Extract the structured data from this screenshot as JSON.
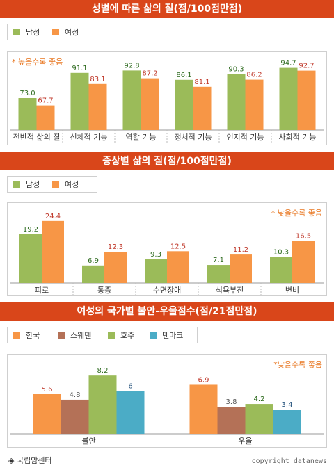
{
  "colors": {
    "green": "#9bbb59",
    "orange": "#f79646",
    "brown": "#b47157",
    "blue": "#4bacc6",
    "header": "#d9461a"
  },
  "footer": {
    "source": "◈ 국립암센터",
    "copyright": "copyright datanews"
  },
  "chart_data": [
    {
      "type": "bar",
      "title": "성별에 따른 삶의 질(점/100점만점)",
      "note": "* 높을수록 좋음",
      "categories": [
        "전반적 삶의 질",
        "신체적 기능",
        "역할 기능",
        "정서적 기능",
        "인지적 기능",
        "사회적 기능"
      ],
      "series": [
        {
          "name": "남성",
          "values": [
            73.0,
            91.1,
            92.8,
            86.1,
            90.3,
            94.7
          ],
          "labels": [
            "73.0",
            "91.1",
            "92.8",
            "86.1",
            "90.3",
            "94.7"
          ]
        },
        {
          "name": "여성",
          "values": [
            67.7,
            83.1,
            87.2,
            81.1,
            86.2,
            92.7
          ],
          "labels": [
            "67.7",
            "83.1",
            "87.2",
            "81.1",
            "86.2",
            "92.7"
          ]
        }
      ],
      "ylim": [
        50,
        100
      ],
      "grid": false,
      "legend": "top-left"
    },
    {
      "type": "bar",
      "title": "증상별 삶의 질(점/100점만점)",
      "note": "* 낮을수록 좋음",
      "categories": [
        "피로",
        "통증",
        "수면장애",
        "식욕부진",
        "변비"
      ],
      "series": [
        {
          "name": "남성",
          "values": [
            19.2,
            6.9,
            9.3,
            7.1,
            10.3
          ],
          "labels": [
            "19.2",
            "6.9",
            "9.3",
            "7.1",
            "10.3"
          ]
        },
        {
          "name": "여성",
          "values": [
            24.4,
            12.3,
            12.5,
            11.2,
            16.5
          ],
          "labels": [
            "24.4",
            "12.3",
            "12.5",
            "11.2",
            "16.5"
          ]
        }
      ],
      "ylim": [
        0,
        26
      ],
      "grid": false,
      "legend": "top-left"
    },
    {
      "type": "bar",
      "title": "여성의 국가별 불안-우울점수(점/21점만점)",
      "note": "*낮을수록 좋음",
      "categories": [
        "불안",
        "우울"
      ],
      "series": [
        {
          "name": "한국",
          "values": [
            5.6,
            6.9
          ],
          "labels": [
            "5.6",
            "6.9"
          ]
        },
        {
          "name": "스웨덴",
          "values": [
            4.8,
            3.8
          ],
          "labels": [
            "4.8",
            "3.8"
          ]
        },
        {
          "name": "호주",
          "values": [
            8.2,
            4.2
          ],
          "labels": [
            "8.2",
            "4.2"
          ]
        },
        {
          "name": "덴마크",
          "values": [
            6,
            3.4
          ],
          "labels": [
            "6",
            "3.4"
          ]
        }
      ],
      "ylim": [
        0,
        9
      ],
      "grid": false,
      "legend": "top-left"
    }
  ]
}
